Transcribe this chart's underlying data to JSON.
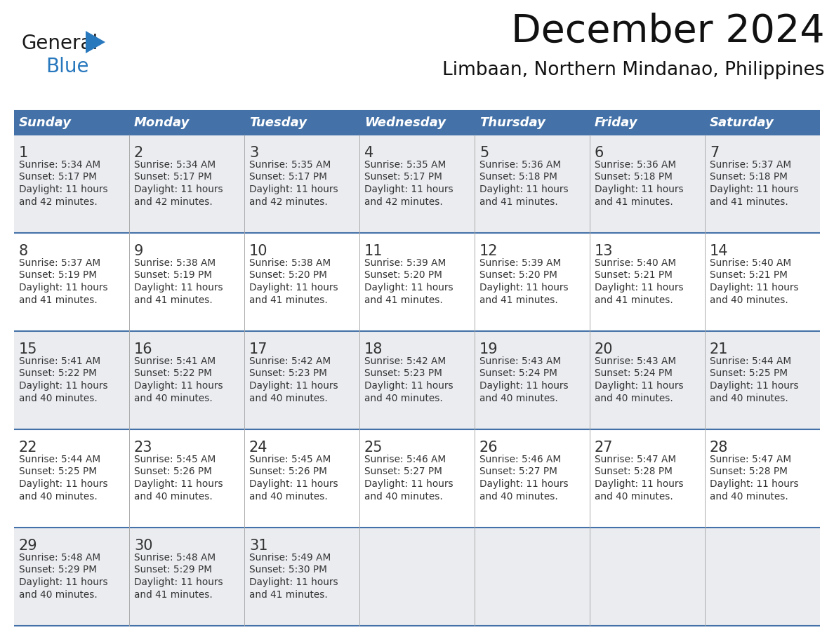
{
  "title": "December 2024",
  "subtitle": "Limbaan, Northern Mindanao, Philippines",
  "days_of_week": [
    "Sunday",
    "Monday",
    "Tuesday",
    "Wednesday",
    "Thursday",
    "Friday",
    "Saturday"
  ],
  "header_bg": "#4472A8",
  "header_text": "#FFFFFF",
  "cell_bg_odd": "#EAECF0",
  "cell_bg_even": "#FFFFFF",
  "text_color": "#333333",
  "border_color": "#4472A8",
  "divider_color": "#AAAAAA",
  "logo_black": "#1A1A1A",
  "logo_blue": "#2878BE",
  "logo_tri": "#2878BE",
  "weeks": [
    [
      {
        "day": 1,
        "sunrise": "5:34 AM",
        "sunset": "5:17 PM",
        "dl1": "11 hours",
        "dl2": "and 42 minutes."
      },
      {
        "day": 2,
        "sunrise": "5:34 AM",
        "sunset": "5:17 PM",
        "dl1": "11 hours",
        "dl2": "and 42 minutes."
      },
      {
        "day": 3,
        "sunrise": "5:35 AM",
        "sunset": "5:17 PM",
        "dl1": "11 hours",
        "dl2": "and 42 minutes."
      },
      {
        "day": 4,
        "sunrise": "5:35 AM",
        "sunset": "5:17 PM",
        "dl1": "11 hours",
        "dl2": "and 42 minutes."
      },
      {
        "day": 5,
        "sunrise": "5:36 AM",
        "sunset": "5:18 PM",
        "dl1": "11 hours",
        "dl2": "and 41 minutes."
      },
      {
        "day": 6,
        "sunrise": "5:36 AM",
        "sunset": "5:18 PM",
        "dl1": "11 hours",
        "dl2": "and 41 minutes."
      },
      {
        "day": 7,
        "sunrise": "5:37 AM",
        "sunset": "5:18 PM",
        "dl1": "11 hours",
        "dl2": "and 41 minutes."
      }
    ],
    [
      {
        "day": 8,
        "sunrise": "5:37 AM",
        "sunset": "5:19 PM",
        "dl1": "11 hours",
        "dl2": "and 41 minutes."
      },
      {
        "day": 9,
        "sunrise": "5:38 AM",
        "sunset": "5:19 PM",
        "dl1": "11 hours",
        "dl2": "and 41 minutes."
      },
      {
        "day": 10,
        "sunrise": "5:38 AM",
        "sunset": "5:20 PM",
        "dl1": "11 hours",
        "dl2": "and 41 minutes."
      },
      {
        "day": 11,
        "sunrise": "5:39 AM",
        "sunset": "5:20 PM",
        "dl1": "11 hours",
        "dl2": "and 41 minutes."
      },
      {
        "day": 12,
        "sunrise": "5:39 AM",
        "sunset": "5:20 PM",
        "dl1": "11 hours",
        "dl2": "and 41 minutes."
      },
      {
        "day": 13,
        "sunrise": "5:40 AM",
        "sunset": "5:21 PM",
        "dl1": "11 hours",
        "dl2": "and 41 minutes."
      },
      {
        "day": 14,
        "sunrise": "5:40 AM",
        "sunset": "5:21 PM",
        "dl1": "11 hours",
        "dl2": "and 40 minutes."
      }
    ],
    [
      {
        "day": 15,
        "sunrise": "5:41 AM",
        "sunset": "5:22 PM",
        "dl1": "11 hours",
        "dl2": "and 40 minutes."
      },
      {
        "day": 16,
        "sunrise": "5:41 AM",
        "sunset": "5:22 PM",
        "dl1": "11 hours",
        "dl2": "and 40 minutes."
      },
      {
        "day": 17,
        "sunrise": "5:42 AM",
        "sunset": "5:23 PM",
        "dl1": "11 hours",
        "dl2": "and 40 minutes."
      },
      {
        "day": 18,
        "sunrise": "5:42 AM",
        "sunset": "5:23 PM",
        "dl1": "11 hours",
        "dl2": "and 40 minutes."
      },
      {
        "day": 19,
        "sunrise": "5:43 AM",
        "sunset": "5:24 PM",
        "dl1": "11 hours",
        "dl2": "and 40 minutes."
      },
      {
        "day": 20,
        "sunrise": "5:43 AM",
        "sunset": "5:24 PM",
        "dl1": "11 hours",
        "dl2": "and 40 minutes."
      },
      {
        "day": 21,
        "sunrise": "5:44 AM",
        "sunset": "5:25 PM",
        "dl1": "11 hours",
        "dl2": "and 40 minutes."
      }
    ],
    [
      {
        "day": 22,
        "sunrise": "5:44 AM",
        "sunset": "5:25 PM",
        "dl1": "11 hours",
        "dl2": "and 40 minutes."
      },
      {
        "day": 23,
        "sunrise": "5:45 AM",
        "sunset": "5:26 PM",
        "dl1": "11 hours",
        "dl2": "and 40 minutes."
      },
      {
        "day": 24,
        "sunrise": "5:45 AM",
        "sunset": "5:26 PM",
        "dl1": "11 hours",
        "dl2": "and 40 minutes."
      },
      {
        "day": 25,
        "sunrise": "5:46 AM",
        "sunset": "5:27 PM",
        "dl1": "11 hours",
        "dl2": "and 40 minutes."
      },
      {
        "day": 26,
        "sunrise": "5:46 AM",
        "sunset": "5:27 PM",
        "dl1": "11 hours",
        "dl2": "and 40 minutes."
      },
      {
        "day": 27,
        "sunrise": "5:47 AM",
        "sunset": "5:28 PM",
        "dl1": "11 hours",
        "dl2": "and 40 minutes."
      },
      {
        "day": 28,
        "sunrise": "5:47 AM",
        "sunset": "5:28 PM",
        "dl1": "11 hours",
        "dl2": "and 40 minutes."
      }
    ],
    [
      {
        "day": 29,
        "sunrise": "5:48 AM",
        "sunset": "5:29 PM",
        "dl1": "11 hours",
        "dl2": "and 40 minutes."
      },
      {
        "day": 30,
        "sunrise": "5:48 AM",
        "sunset": "5:29 PM",
        "dl1": "11 hours",
        "dl2": "and 41 minutes."
      },
      {
        "day": 31,
        "sunrise": "5:49 AM",
        "sunset": "5:30 PM",
        "dl1": "11 hours",
        "dl2": "and 41 minutes."
      },
      null,
      null,
      null,
      null
    ]
  ]
}
